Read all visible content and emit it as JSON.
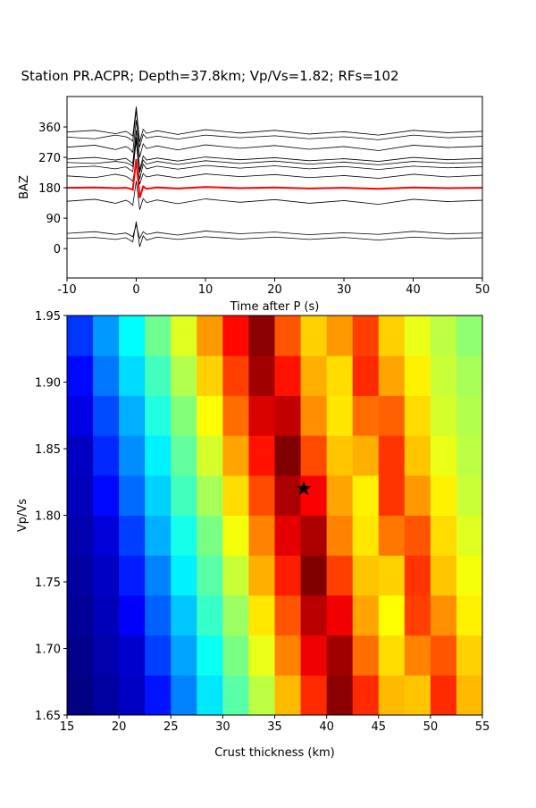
{
  "chart_data": [
    {
      "type": "line",
      "title": "Station PR.ACPR; Depth=37.8km; Vp/Vs=1.82; RFs=102",
      "xlabel": "Time after P (s)",
      "ylabel": "BAZ",
      "xlim": [
        -10,
        50
      ],
      "xticks": [
        -10,
        0,
        10,
        20,
        30,
        40,
        50
      ],
      "ylim": [
        -87,
        450
      ],
      "yticks": [
        0,
        90,
        180,
        270,
        360
      ],
      "x": [
        -10,
        -6,
        -3,
        -1.5,
        -1,
        -0.5,
        0,
        0.5,
        1,
        1.5,
        3,
        6,
        10,
        15,
        20,
        25,
        30,
        35,
        40,
        45,
        50
      ],
      "series": [
        {
          "color": "#000000",
          "values": [
            30,
            33,
            27,
            32,
            26,
            20,
            80,
            5,
            38,
            25,
            34,
            27,
            35,
            28,
            34,
            27,
            33,
            25,
            34,
            29,
            32
          ]
        },
        {
          "color": "#000000",
          "values": [
            45,
            50,
            42,
            46,
            41,
            35,
            70,
            30,
            50,
            42,
            48,
            40,
            52,
            44,
            49,
            41,
            47,
            42,
            51,
            44,
            46
          ]
        },
        {
          "color": "#000000",
          "values": [
            140,
            146,
            134,
            143,
            138,
            128,
            200,
            115,
            148,
            136,
            144,
            133,
            147,
            137,
            145,
            134,
            142,
            131,
            146,
            139,
            143
          ]
        },
        {
          "color": "#000000",
          "values": [
            215,
            210,
            220,
            214,
            208,
            200,
            260,
            190,
            222,
            212,
            218,
            209,
            221,
            213,
            219,
            210,
            216,
            208,
            220,
            212,
            217
          ]
        },
        {
          "color": "#000000",
          "values": [
            240,
            244,
            236,
            242,
            235,
            228,
            320,
            205,
            250,
            236,
            244,
            235,
            246,
            238,
            245,
            236,
            243,
            234,
            244,
            239,
            242
          ]
        },
        {
          "color": "#000000",
          "values": [
            255,
            252,
            258,
            254,
            250,
            243,
            330,
            225,
            262,
            250,
            258,
            249,
            260,
            252,
            259,
            250,
            256,
            248,
            258,
            253,
            255
          ]
        },
        {
          "color": "#000000",
          "values": [
            265,
            270,
            262,
            267,
            260,
            252,
            350,
            232,
            274,
            262,
            268,
            259,
            271,
            263,
            269,
            260,
            266,
            258,
            270,
            263,
            267
          ]
        },
        {
          "color": "#000000",
          "values": [
            300,
            306,
            293,
            302,
            296,
            285,
            380,
            270,
            310,
            296,
            304,
            292,
            307,
            297,
            305,
            294,
            302,
            290,
            306,
            299,
            303
          ]
        },
        {
          "color": "#000000",
          "values": [
            330,
            325,
            336,
            331,
            326,
            318,
            410,
            300,
            338,
            327,
            333,
            324,
            336,
            328,
            334,
            325,
            331,
            322,
            336,
            328,
            332
          ]
        },
        {
          "color": "#000000",
          "values": [
            345,
            350,
            340,
            347,
            341,
            333,
            420,
            315,
            353,
            341,
            349,
            338,
            352,
            342,
            350,
            339,
            346,
            336,
            350,
            343,
            347
          ]
        },
        {
          "color": "#ff0000",
          "values": [
            180,
            181,
            179,
            180,
            178,
            174,
            265,
            150,
            184,
            177,
            181,
            178,
            182,
            179,
            181,
            178,
            180,
            177,
            181,
            179,
            180
          ]
        }
      ]
    },
    {
      "type": "heatmap",
      "xlabel": "Crust thickness (km)",
      "ylabel": "Vp/Vs",
      "xlim": [
        15,
        55
      ],
      "xticks": [
        15,
        20,
        25,
        30,
        35,
        40,
        45,
        50,
        55
      ],
      "ylim": [
        1.65,
        1.95
      ],
      "yticks": [
        1.65,
        {
          "value": 1.7,
          "label": "1.70"
        },
        1.75,
        {
          "value": 1.8,
          "label": "1.80"
        },
        1.85,
        {
          "value": 1.9,
          "label": "1.90"
        },
        1.95
      ],
      "colormap": "jet",
      "x": [
        16.25,
        18.75,
        21.25,
        23.75,
        26.25,
        28.75,
        31.25,
        33.75,
        36.25,
        38.75,
        41.25,
        43.75,
        46.25,
        48.75,
        51.25,
        53.75
      ],
      "y": [
        1.665,
        1.695,
        1.725,
        1.755,
        1.785,
        1.815,
        1.845,
        1.875,
        1.905,
        1.935
      ],
      "values": [
        [
          0.08,
          0.11,
          0.14,
          0.21,
          0.31,
          0.4,
          0.5,
          0.59,
          0.71,
          0.84,
          0.98,
          0.84,
          0.71,
          0.7,
          0.84,
          0.71
        ],
        [
          0.09,
          0.12,
          0.15,
          0.25,
          0.34,
          0.43,
          0.53,
          0.63,
          0.76,
          0.89,
          0.96,
          0.78,
          0.68,
          0.76,
          0.8,
          0.69
        ],
        [
          0.1,
          0.13,
          0.19,
          0.28,
          0.37,
          0.47,
          0.56,
          0.67,
          0.8,
          0.94,
          0.89,
          0.73,
          0.65,
          0.82,
          0.75,
          0.66
        ],
        [
          0.11,
          0.14,
          0.22,
          0.31,
          0.41,
          0.5,
          0.6,
          0.72,
          0.85,
          0.99,
          0.82,
          0.7,
          0.69,
          0.83,
          0.7,
          0.64
        ],
        [
          0.12,
          0.16,
          0.25,
          0.35,
          0.44,
          0.53,
          0.64,
          0.76,
          0.9,
          0.95,
          0.76,
          0.67,
          0.77,
          0.8,
          0.68,
          0.62
        ],
        [
          0.13,
          0.2,
          0.29,
          0.38,
          0.48,
          0.57,
          0.68,
          0.81,
          0.95,
          0.88,
          0.73,
          0.66,
          0.83,
          0.74,
          0.66,
          0.6
        ],
        [
          0.14,
          0.23,
          0.32,
          0.41,
          0.51,
          0.61,
          0.73,
          0.86,
          0.99,
          0.81,
          0.7,
          0.72,
          0.83,
          0.7,
          0.63,
          0.59
        ],
        [
          0.17,
          0.26,
          0.35,
          0.45,
          0.54,
          0.65,
          0.78,
          0.91,
          0.93,
          0.75,
          0.67,
          0.78,
          0.79,
          0.68,
          0.61,
          0.58
        ],
        [
          0.2,
          0.3,
          0.39,
          0.48,
          0.58,
          0.69,
          0.82,
          0.96,
          0.86,
          0.72,
          0.68,
          0.84,
          0.73,
          0.66,
          0.6,
          0.57
        ],
        [
          0.24,
          0.33,
          0.42,
          0.52,
          0.62,
          0.74,
          0.87,
          0.98,
          0.8,
          0.69,
          0.74,
          0.82,
          0.69,
          0.63,
          0.59,
          0.55
        ]
      ],
      "marker": {
        "x": 37.8,
        "y": 1.82,
        "color": "#000000"
      }
    }
  ]
}
